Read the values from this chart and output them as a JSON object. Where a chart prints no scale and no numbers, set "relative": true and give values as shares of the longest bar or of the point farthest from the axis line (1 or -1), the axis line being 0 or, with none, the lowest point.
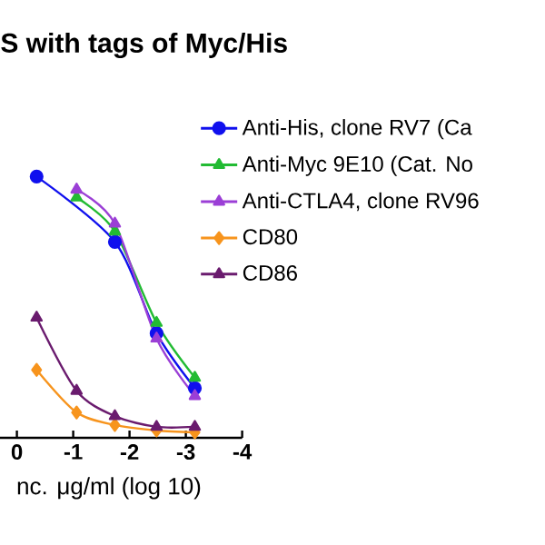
{
  "chart_data": {
    "type": "line",
    "title": "S with tags of Myc/His",
    "xlabel": "nc. μg/ml (log 10)",
    "relative": true,
    "xlim": [
      0.3,
      -4
    ],
    "xticks": [
      0,
      -1,
      -2,
      -3,
      -4
    ],
    "legend": "right",
    "series": [
      {
        "name": "Anti-His, clone RV7 (Ca",
        "color": "#1010ee",
        "marker": "circle",
        "x": [
          -0.35,
          -1.06,
          -1.74,
          -2.48,
          -3.16
        ],
        "values": [
          1.0,
          null,
          0.75,
          0.4,
          0.19
        ]
      },
      {
        "name": "Anti-Myc 9E10 (Cat. No",
        "color": "#22bb33",
        "marker": "triangle",
        "x": [
          -1.06,
          -1.74,
          -2.48,
          -3.16
        ],
        "values": [
          0.92,
          0.79,
          0.44,
          0.23
        ]
      },
      {
        "name": "Anti-CTLA4, clone RV96",
        "color": "#9b3fd6",
        "marker": "triangle",
        "x": [
          -1.06,
          -1.74,
          -2.48,
          -3.16
        ],
        "values": [
          0.95,
          0.82,
          0.38,
          0.16
        ]
      },
      {
        "name": "CD80",
        "color": "#f7941d",
        "marker": "diamond",
        "x": [
          -0.35,
          -1.06,
          -1.74,
          -2.48,
          -3.16
        ],
        "values": [
          0.26,
          0.097,
          0.049,
          0.028,
          0.021
        ]
      },
      {
        "name": "CD86",
        "color": "#6a1b6e",
        "marker": "triangle",
        "x": [
          -0.35,
          -1.06,
          -1.74,
          -2.48,
          -3.16
        ],
        "values": [
          0.46,
          0.18,
          0.083,
          0.042,
          0.042
        ]
      }
    ]
  }
}
